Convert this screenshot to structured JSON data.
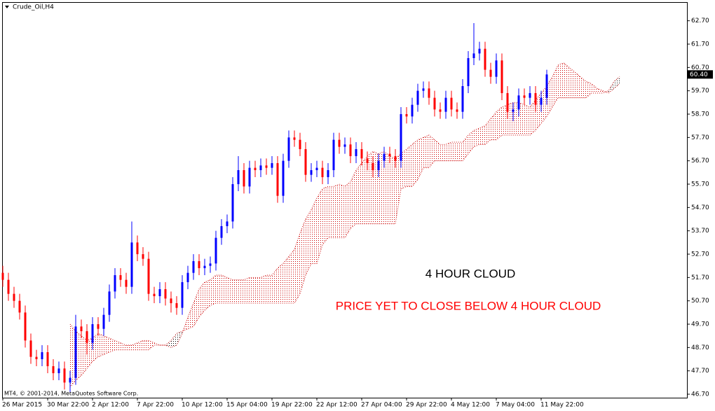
{
  "chart_data": {
    "type": "candlestick",
    "title": "Crude_Oil,H4",
    "copyright": "MT4, © 2001-2014, MetaQuotes Software Corp.",
    "categories": [
      "26 Mar 2015",
      null,
      null,
      null,
      null,
      null,
      null,
      null,
      "30 Mar 22:00",
      null,
      null,
      null,
      null,
      null,
      null,
      null,
      "2 Apr 12:00",
      null,
      null,
      null,
      null,
      null,
      null,
      null,
      "7 Apr 22:00",
      null,
      null,
      null,
      null,
      null,
      null,
      null,
      "10 Apr 12:00",
      null,
      null,
      null,
      null,
      null,
      null,
      null,
      "15 Apr 04:00",
      null,
      null,
      null,
      null,
      null,
      null,
      null,
      "19 Apr 22:00",
      null,
      null,
      null,
      null,
      null,
      null,
      null,
      "22 Apr 12:00",
      null,
      null,
      null,
      null,
      null,
      null,
      null,
      "27 Apr 04:00",
      null,
      null,
      null,
      null,
      null,
      null,
      null,
      "29 Apr 22:00",
      null,
      null,
      null,
      null,
      null,
      null,
      null,
      "4 May 12:00",
      null,
      null,
      null,
      null,
      null,
      null,
      null,
      "7 May 04:00",
      null,
      null,
      null,
      null,
      null,
      null,
      null,
      "11 May 22:00",
      null,
      null,
      null,
      null,
      null,
      null,
      null,
      null,
      null,
      null,
      null,
      null,
      null,
      null
    ],
    "open": [
      51.9,
      51.6,
      51.0,
      50.7,
      50.2,
      49.0,
      48.3,
      48.2,
      48.5,
      47.9,
      47.6,
      47.8,
      47.2,
      47.4,
      49.6,
      49.4,
      48.9,
      49.7,
      49.5,
      50.1,
      51.1,
      51.8,
      51.6,
      51.3,
      53.2,
      52.7,
      52.5,
      51.0,
      50.9,
      51.2,
      50.8,
      50.6,
      50.4,
      51.5,
      51.9,
      52.4,
      52.1,
      52.2,
      52.3,
      53.4,
      53.9,
      54.1,
      55.7,
      56.3,
      55.6,
      56.4,
      56.3,
      56.5,
      56.4,
      56.6,
      55.2,
      56.7,
      57.7,
      57.6,
      57.2,
      56.1,
      56.3,
      56.4,
      56.0,
      56.3,
      57.6,
      57.3,
      57.4,
      56.9,
      57.2,
      56.8,
      56.6,
      56.3,
      56.7,
      57.0,
      56.9,
      56.7,
      58.7,
      58.6,
      59.1,
      59.7,
      59.8,
      59.4,
      58.9,
      58.8,
      59.4,
      58.9,
      58.8,
      59.9,
      61.1,
      61.3,
      61.5,
      60.6,
      60.3,
      61.0,
      59.6,
      58.8,
      58.9,
      59.5,
      59.4,
      59.6,
      59.1,
      59.4,
      null,
      null,
      null,
      null,
      null,
      null,
      null,
      null,
      null,
      null,
      null,
      null,
      null
    ],
    "high": [
      52.2,
      51.9,
      51.3,
      51.0,
      50.5,
      49.3,
      48.6,
      48.8,
      48.8,
      48.2,
      48.1,
      48.1,
      47.7,
      50.1,
      49.9,
      49.7,
      50.0,
      50.0,
      50.4,
      51.4,
      52.1,
      52.1,
      51.9,
      54.1,
      53.5,
      53.0,
      52.8,
      51.3,
      51.5,
      51.5,
      51.1,
      50.9,
      51.8,
      52.2,
      52.7,
      52.7,
      52.5,
      52.6,
      53.7,
      54.2,
      54.4,
      56.0,
      56.9,
      56.6,
      56.7,
      56.7,
      56.8,
      56.8,
      56.9,
      56.9,
      57.0,
      58.0,
      58.0,
      57.9,
      57.5,
      56.6,
      56.7,
      56.7,
      56.6,
      57.9,
      57.9,
      57.7,
      57.7,
      57.5,
      57.5,
      57.1,
      56.9,
      57.0,
      57.3,
      57.3,
      57.2,
      59.0,
      59.0,
      59.4,
      60.0,
      60.1,
      60.1,
      59.7,
      59.2,
      59.7,
      59.7,
      59.2,
      60.2,
      61.4,
      62.6,
      61.8,
      61.8,
      60.9,
      61.3,
      61.3,
      59.9,
      59.2,
      59.8,
      59.8,
      59.9,
      59.9,
      59.7,
      60.6,
      null,
      null,
      null,
      null,
      null,
      null,
      null,
      null,
      null,
      null,
      null,
      null,
      null
    ],
    "low": [
      51.3,
      50.7,
      50.4,
      49.9,
      48.7,
      48.0,
      47.9,
      47.9,
      47.6,
      47.3,
      47.3,
      46.9,
      46.8,
      47.1,
      49.1,
      48.4,
      48.6,
      49.2,
      49.2,
      49.8,
      50.8,
      51.3,
      51.0,
      51.0,
      52.4,
      52.2,
      50.7,
      50.6,
      50.6,
      50.5,
      50.2,
      50.1,
      50.1,
      51.2,
      51.6,
      51.8,
      51.8,
      51.9,
      52.0,
      53.1,
      53.6,
      53.8,
      55.4,
      55.3,
      55.3,
      56.0,
      56.0,
      56.1,
      56.1,
      54.9,
      54.9,
      56.4,
      57.3,
      56.9,
      55.8,
      55.8,
      56.0,
      55.7,
      55.7,
      56.0,
      57.0,
      57.0,
      56.6,
      56.6,
      56.5,
      56.3,
      56.0,
      56.0,
      56.4,
      56.6,
      56.4,
      56.4,
      58.3,
      58.3,
      58.8,
      59.4,
      59.1,
      58.6,
      58.5,
      58.5,
      58.6,
      58.5,
      58.5,
      59.6,
      60.8,
      61.0,
      60.3,
      60.0,
      60.0,
      59.3,
      58.5,
      58.4,
      58.6,
      59.1,
      59.1,
      58.8,
      58.8,
      59.1,
      null,
      null,
      null,
      null,
      null,
      null,
      null,
      null,
      null,
      null,
      null,
      null,
      null
    ],
    "close": [
      51.6,
      51.0,
      50.7,
      50.2,
      49.0,
      48.3,
      48.2,
      48.5,
      47.9,
      47.6,
      47.8,
      47.2,
      47.4,
      49.6,
      49.4,
      48.9,
      49.7,
      49.5,
      50.1,
      51.1,
      51.8,
      51.6,
      51.3,
      53.2,
      52.7,
      52.5,
      51.0,
      50.9,
      51.2,
      50.8,
      50.6,
      50.4,
      51.5,
      51.9,
      52.4,
      52.1,
      52.2,
      52.3,
      53.4,
      53.9,
      54.1,
      55.7,
      56.3,
      55.6,
      56.4,
      56.3,
      56.5,
      56.4,
      56.6,
      55.2,
      56.7,
      57.7,
      57.6,
      57.2,
      56.1,
      56.3,
      56.4,
      56.0,
      56.3,
      57.6,
      57.3,
      57.4,
      56.9,
      57.2,
      56.8,
      56.6,
      56.3,
      56.7,
      57.0,
      56.9,
      56.7,
      58.7,
      58.6,
      59.1,
      59.7,
      59.8,
      59.4,
      58.9,
      58.8,
      59.4,
      58.9,
      58.8,
      59.9,
      61.1,
      61.3,
      61.5,
      60.6,
      60.3,
      61.0,
      59.6,
      58.8,
      58.9,
      59.5,
      59.4,
      59.6,
      59.1,
      59.4,
      60.4,
      null,
      null,
      null,
      null,
      null,
      null,
      null,
      null,
      null,
      null,
      null,
      null,
      null
    ],
    "up_color": "#0000ff",
    "down_color": "#ff0000",
    "cloud": {
      "span_a": [
        null,
        null,
        null,
        null,
        null,
        null,
        null,
        null,
        null,
        null,
        null,
        null,
        49.7,
        49.4,
        49.2,
        49.0,
        49.1,
        49.3,
        49.2,
        49.1,
        49.0,
        48.9,
        48.8,
        48.8,
        48.9,
        49.0,
        49.0,
        48.9,
        48.8,
        48.8,
        48.7,
        48.8,
        49.3,
        50.0,
        50.6,
        51.2,
        51.5,
        51.6,
        51.8,
        51.8,
        51.7,
        51.6,
        51.6,
        51.6,
        51.7,
        51.7,
        51.7,
        51.8,
        51.8,
        52.1,
        52.3,
        52.6,
        52.9,
        53.6,
        54.2,
        54.6,
        55.1,
        55.5,
        55.6,
        55.6,
        55.7,
        55.6,
        55.8,
        56.3,
        56.6,
        56.9,
        57.1,
        57.0,
        57.1,
        56.9,
        56.8,
        57.0,
        57.2,
        57.4,
        57.6,
        57.7,
        57.8,
        57.6,
        57.4,
        57.4,
        57.5,
        57.5,
        57.5,
        57.8,
        58.0,
        58.1,
        58.2,
        58.5,
        58.8,
        59.0,
        59.1,
        59.2,
        59.2,
        59.1,
        59.0,
        59.3,
        59.6,
        59.9,
        60.3,
        60.8,
        60.9,
        60.7,
        60.5,
        60.3,
        60.1,
        60.0,
        59.8,
        59.7,
        59.6,
        59.8,
        60.0
      ],
      "span_b": [
        null,
        null,
        null,
        null,
        null,
        null,
        null,
        null,
        null,
        null,
        null,
        null,
        47.0,
        47.3,
        47.5,
        47.8,
        48.1,
        48.3,
        48.4,
        48.5,
        48.6,
        48.6,
        48.6,
        48.6,
        48.6,
        48.6,
        48.6,
        48.8,
        48.8,
        48.8,
        49.0,
        49.3,
        49.4,
        49.5,
        49.6,
        50.0,
        50.3,
        50.5,
        50.6,
        50.6,
        50.6,
        50.6,
        50.6,
        50.6,
        50.6,
        50.6,
        50.6,
        50.6,
        50.6,
        50.6,
        50.6,
        50.6,
        50.6,
        51.0,
        51.8,
        52.3,
        52.3,
        53.1,
        53.4,
        53.4,
        53.4,
        53.4,
        53.8,
        54.0,
        54.0,
        54.0,
        54.0,
        54.0,
        54.0,
        54.0,
        54.0,
        55.5,
        55.6,
        55.6,
        55.9,
        56.4,
        56.4,
        56.7,
        56.7,
        56.7,
        56.7,
        56.7,
        56.7,
        57.0,
        57.3,
        57.4,
        57.4,
        57.6,
        57.6,
        57.8,
        57.8,
        57.8,
        57.8,
        57.8,
        57.8,
        58.0,
        58.3,
        58.6,
        59.0,
        59.4,
        59.4,
        59.4,
        59.4,
        59.4,
        59.4,
        59.6,
        59.6,
        59.6,
        59.7,
        60.1,
        60.3
      ],
      "color_up": "#cc0000",
      "color_down": "#000000"
    },
    "ylim": [
      46.55,
      63.5
    ],
    "yticks": [
      {
        "value": 46.7,
        "label": "46.70"
      },
      {
        "value": 47.7,
        "label": "47.70"
      },
      {
        "value": 48.7,
        "label": "48.70"
      },
      {
        "value": 49.7,
        "label": "49.70"
      },
      {
        "value": 50.7,
        "label": "50.70"
      },
      {
        "value": 51.7,
        "label": "51.70"
      },
      {
        "value": 52.7,
        "label": "52.70"
      },
      {
        "value": 53.7,
        "label": "53.70"
      },
      {
        "value": 54.7,
        "label": "54.70"
      },
      {
        "value": 55.7,
        "label": "55.70"
      },
      {
        "value": 56.7,
        "label": "56.70"
      },
      {
        "value": 57.7,
        "label": "57.70"
      },
      {
        "value": 58.7,
        "label": "58.70"
      },
      {
        "value": 59.7,
        "label": "59.70"
      },
      {
        "value": 60.7,
        "label": "60.70"
      },
      {
        "value": 61.7,
        "label": "61.70"
      },
      {
        "value": 62.7,
        "label": "62.70"
      }
    ],
    "last_price": {
      "value": 60.4,
      "label": "60.40"
    },
    "annotations": [
      {
        "text": "4 HOUR CLOUD",
        "color": "#000000"
      },
      {
        "text": "PRICE YET TO CLOSE BELOW 4 HOUR CLOUD",
        "color": "#ff0000"
      }
    ]
  }
}
